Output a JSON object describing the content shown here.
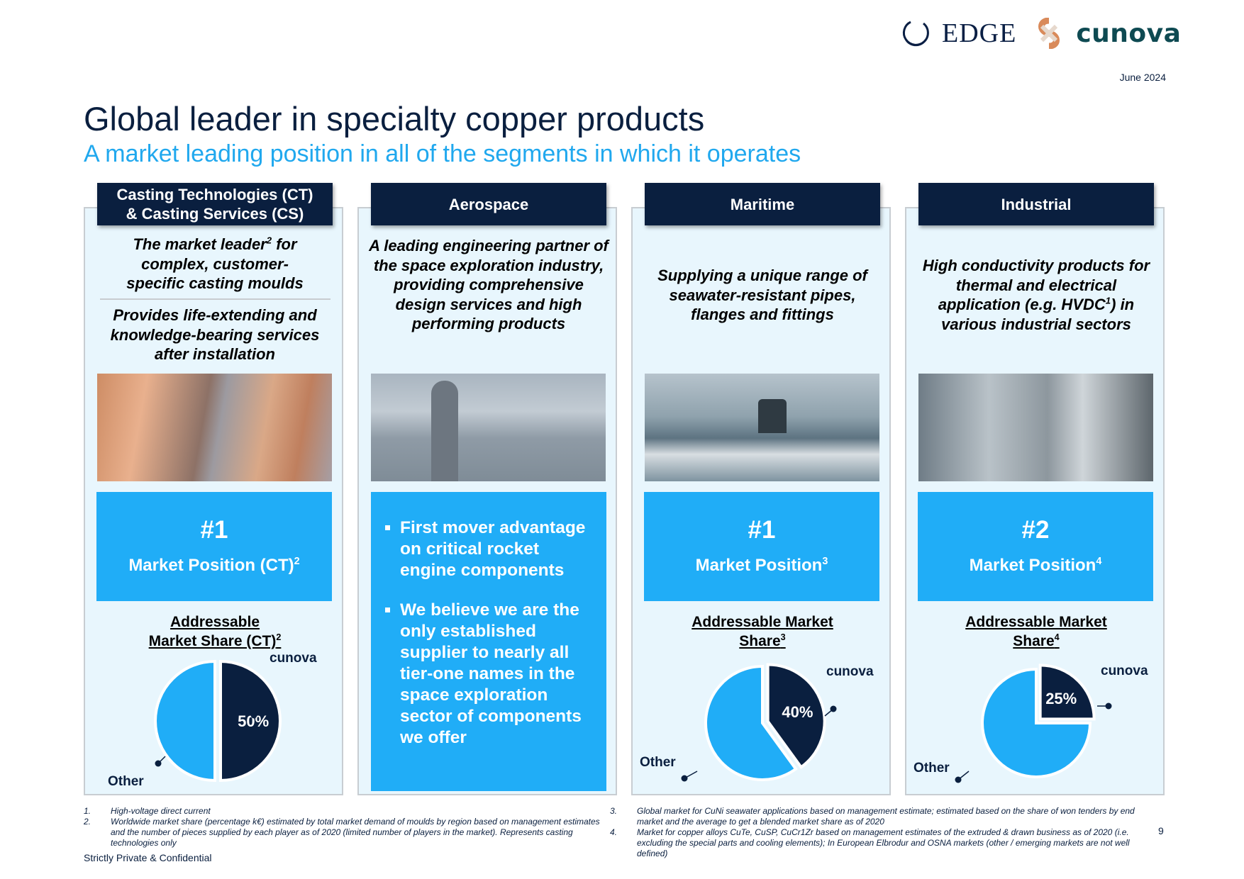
{
  "header": {
    "logos": [
      {
        "name": "EDGE"
      },
      {
        "name": "cunova"
      }
    ],
    "date": "June 2024",
    "title": "Global leader in specialty copper products",
    "subtitle": "A market leading position in all of the segments in which it operates"
  },
  "columns": [
    {
      "heading_line1": "Casting Technologies (CT)",
      "heading_line2": "& Casting Services (CS)",
      "desc1_pre": "The market leader",
      "desc1_sup": "2",
      "desc1_post": " for complex, customer-specific casting moulds",
      "desc2": "Provides life-extending and knowledge-bearing services after installation",
      "rank": "#1",
      "position_label": "Market Position (CT)",
      "position_sup": "2",
      "share_title": "Addressable Market Share (CT)",
      "share_sup": "2"
    },
    {
      "heading_line1": "Aerospace",
      "desc1": "A leading engineering partner of the space exploration industry, providing comprehensive design services and high performing products",
      "bullets": [
        "First mover advantage on critical rocket engine components",
        "We believe we are the only established supplier to nearly all tier-one names in the space exploration sector of components we offer"
      ]
    },
    {
      "heading_line1": "Maritime",
      "desc1": "Supplying a unique range of seawater-resistant pipes, flanges and fittings",
      "rank": "#1",
      "position_label": "Market Position",
      "position_sup": "3",
      "share_title_1": "Addressable Market",
      "share_title_2": "Share",
      "share_sup": "3"
    },
    {
      "heading_line1": "Industrial",
      "desc1_pre": "High conductivity products for thermal and electrical application (e.g. HVDC",
      "desc1_sup": "1",
      "desc1_post": ") in various industrial sectors",
      "rank": "#2",
      "position_label": "Market Position",
      "position_sup": "4",
      "share_title_1": "Addressable Market",
      "share_title_2": "Share",
      "share_sup": "4"
    }
  ],
  "chart_data": [
    {
      "type": "pie",
      "title": "Addressable Market Share (CT)",
      "labels": [
        "cunova",
        "Other"
      ],
      "values": [
        50,
        50
      ],
      "data_labels": [
        "50%",
        ""
      ],
      "colors": [
        "#0a1f3f",
        "#20adf7"
      ]
    },
    {
      "type": "pie",
      "title": "Addressable Market Share (Maritime)",
      "labels": [
        "cunova",
        "Other"
      ],
      "values": [
        40,
        60
      ],
      "data_labels": [
        "40%",
        ""
      ],
      "colors": [
        "#0a1f3f",
        "#20adf7"
      ]
    },
    {
      "type": "pie",
      "title": "Addressable Market Share (Industrial)",
      "labels": [
        "cunova",
        "Other"
      ],
      "values": [
        25,
        75
      ],
      "data_labels": [
        "25%",
        ""
      ],
      "colors": [
        "#0a1f3f",
        "#20adf7"
      ]
    }
  ],
  "footnotes": {
    "n1": "1.",
    "t1": "High-voltage direct current",
    "n2": "2.",
    "t2": "Worldwide market share (percentage k€) estimated by total market demand of moulds by region based on management estimates and the number of pieces supplied by each player as of 2020 (limited number of players in the market). Represents casting technologies only",
    "n3": "3.",
    "t3": "Global market for CuNi seawater applications based on management estimate; estimated based on the share of won tenders by end market and the average to get a blended market share as of 2020",
    "n4": "4.",
    "t4": "Market for copper alloys CuTe, CuSP, CuCr1Zr based on management estimates of the extruded & drawn business as of 2020 (i.e. excluding the special parts and cooling elements); In European Elbrodur and OSNA markets (other / emerging markets are not well defined)"
  },
  "confidential": "Strictly Private & Confidential",
  "page_number": "9"
}
